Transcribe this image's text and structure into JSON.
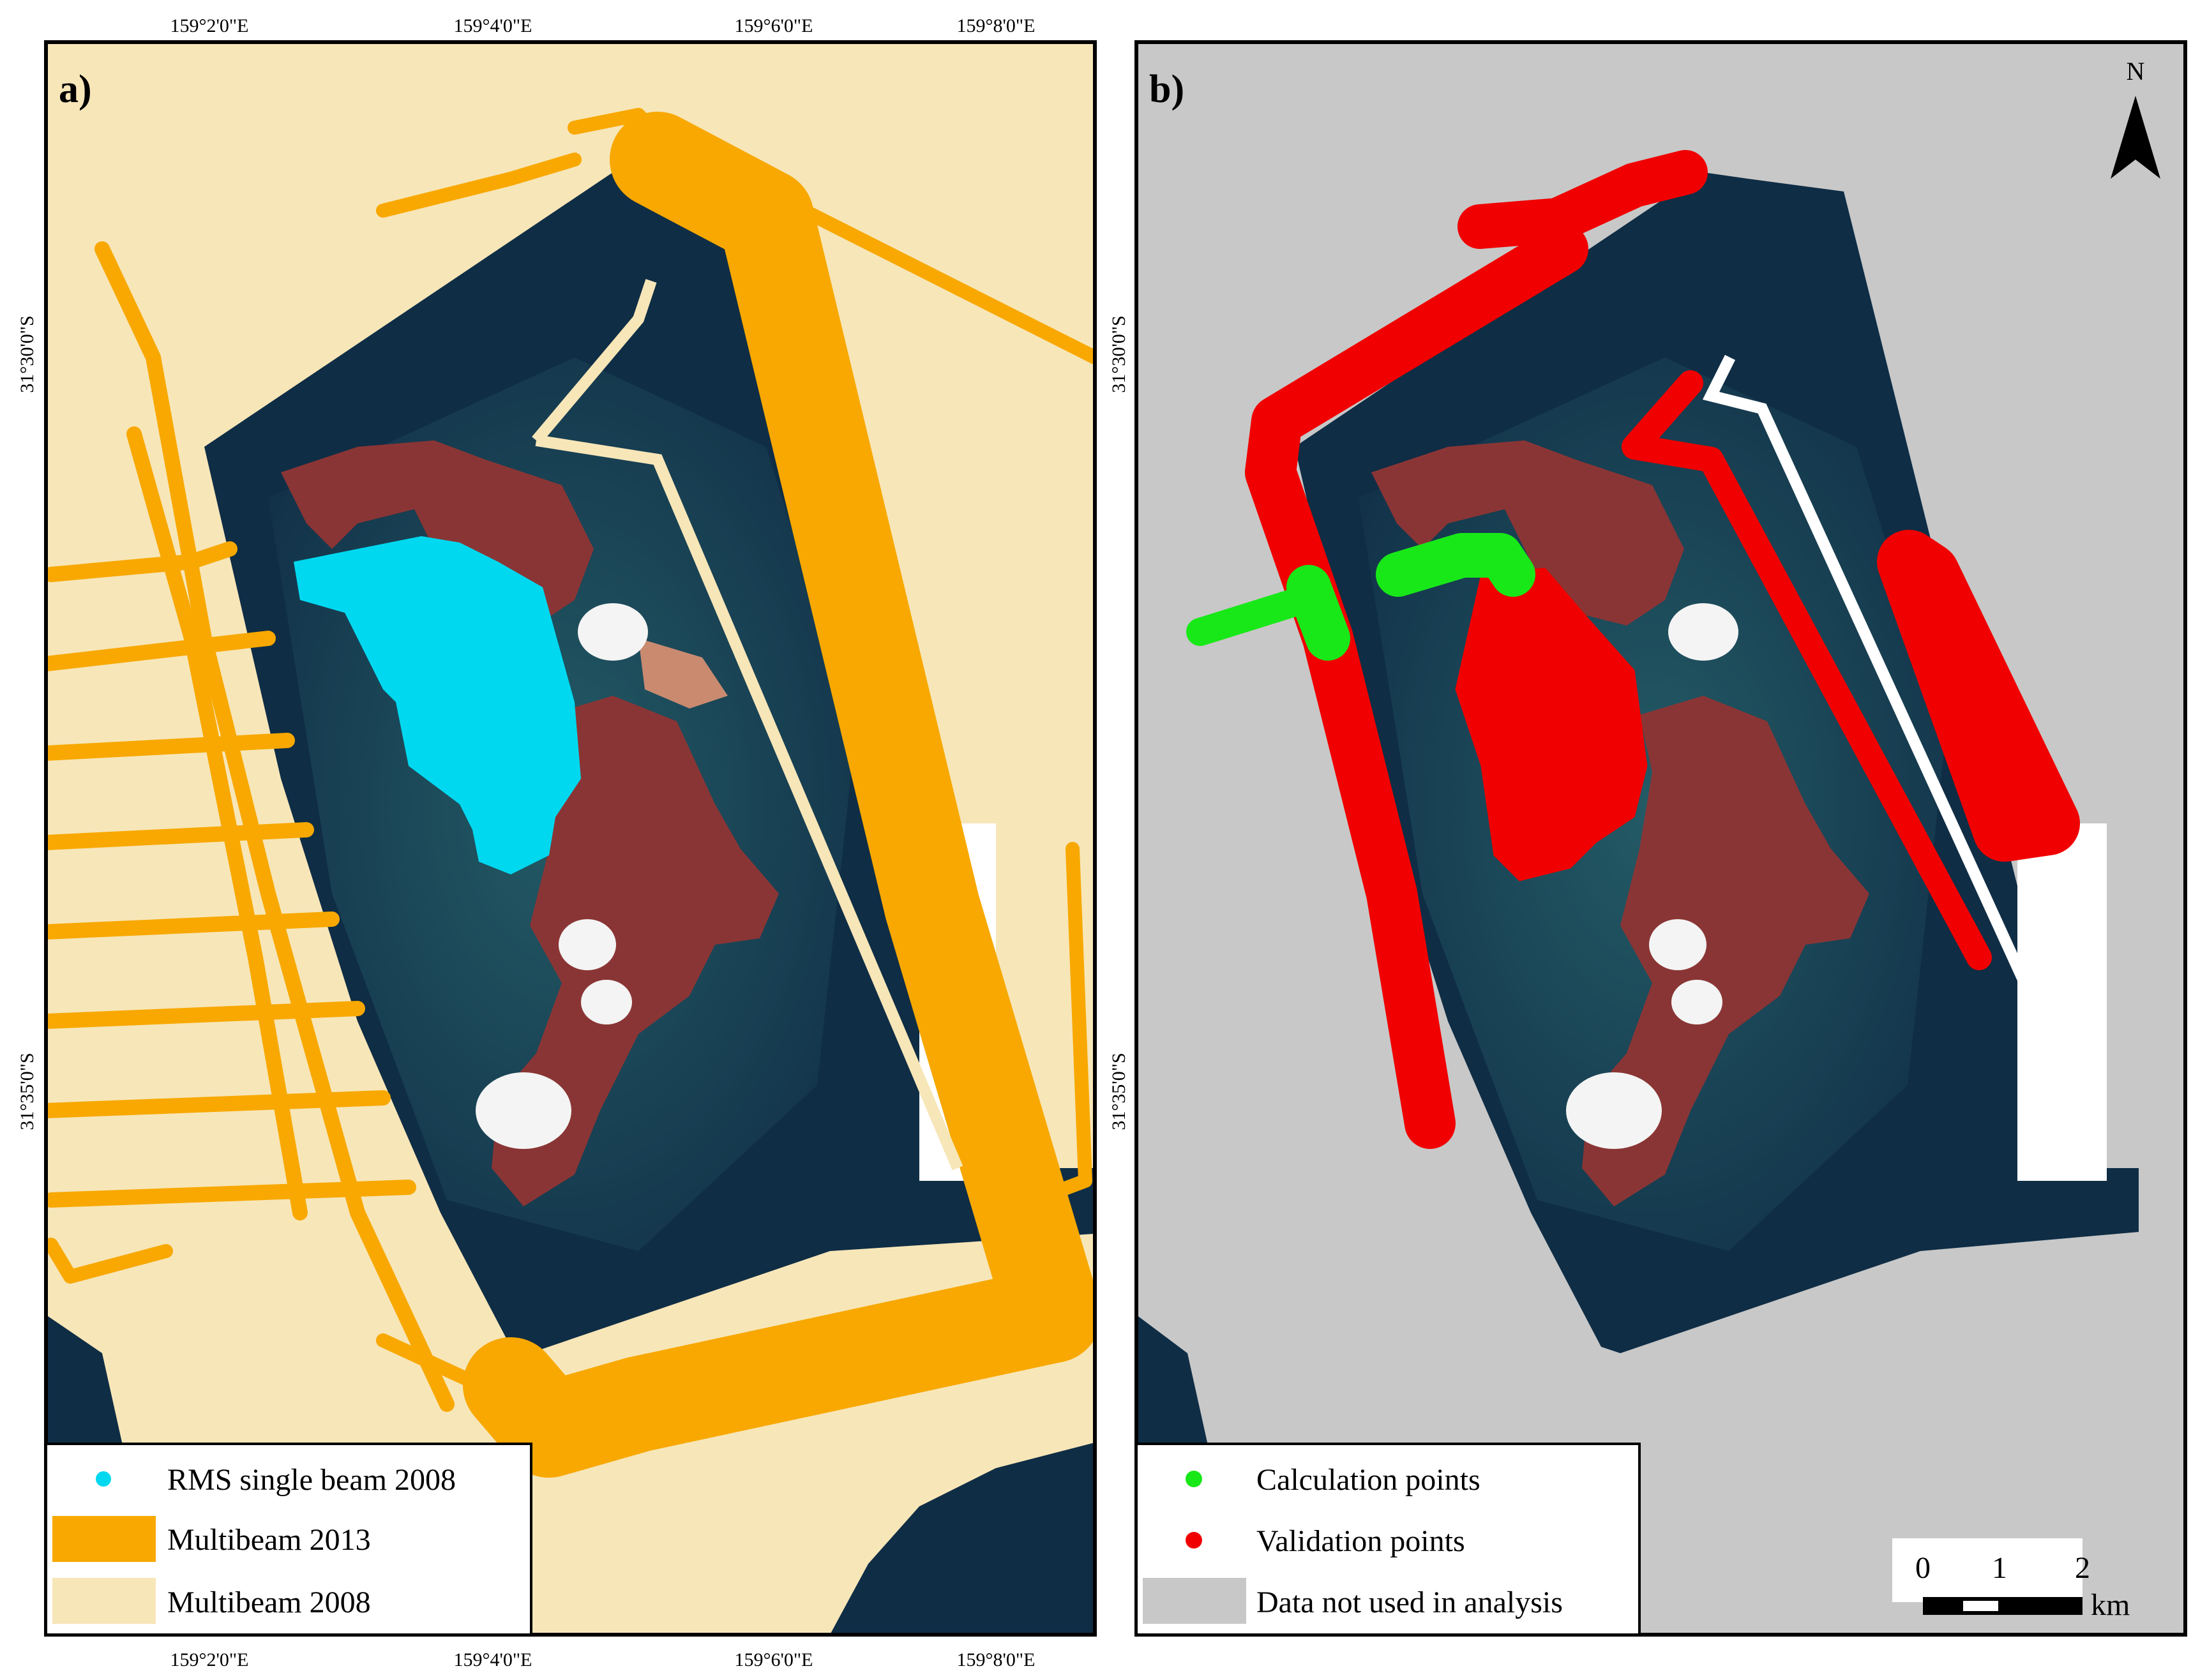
{
  "panels": [
    {
      "id": "a",
      "label": "a)",
      "legend": [
        {
          "label": "RMS single beam 2008",
          "swatch": "point",
          "color": "#00d8f0"
        },
        {
          "label": "Multibeam 2013",
          "swatch": "fill",
          "color": "#f8a800"
        },
        {
          "label": "Multibeam 2008",
          "swatch": "fill",
          "color": "#f7e6b8"
        }
      ]
    },
    {
      "id": "b",
      "label": "b)",
      "legend": [
        {
          "label": "Calculation points",
          "swatch": "point",
          "color": "#18e818"
        },
        {
          "label": "Validation points",
          "swatch": "point",
          "color": "#f00000"
        },
        {
          "label": "Data not used in analysis",
          "swatch": "fill",
          "color": "#c8c8c8"
        }
      ]
    }
  ],
  "graticule": {
    "longitudes_top": [
      "159°2'0\"E",
      "159°4'0\"E",
      "159°6'0\"E",
      "159°8'0\"E"
    ],
    "longitudes_bottom": [
      "159°2'0\"E",
      "159°4'0\"E",
      "159°6'0\"E",
      "159°8'0\"E"
    ],
    "latitudes": [
      "31°30'0\"S",
      "31°35'0\"S"
    ]
  },
  "north_arrow": {
    "label": "N"
  },
  "scale_bar": {
    "ticks": [
      "0",
      "1",
      "2"
    ],
    "unit": "km"
  },
  "colors": {
    "ocean": "#0f2d45",
    "shallow_water": "#1f5560",
    "land": "#8a3535",
    "cloud": "#f4f4f4",
    "validation": "#f00000",
    "calculation": "#18e818",
    "single_beam": "#00d8f0",
    "multibeam_2013": "#f8a800",
    "multibeam_2008": "#f7e6b8",
    "not_used": "#c8c8c8"
  }
}
